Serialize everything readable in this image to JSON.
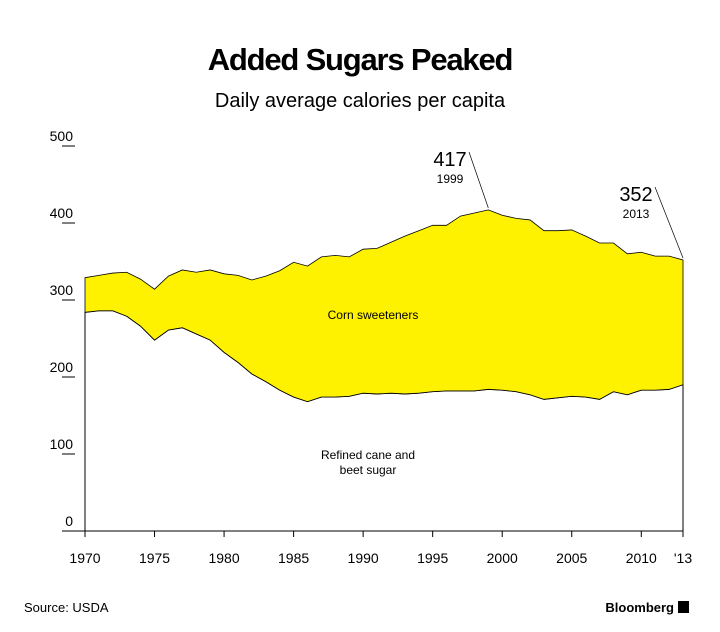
{
  "chart_data": {
    "type": "stacked-area",
    "title": "Added Sugars Peaked",
    "subtitle": "Daily average calories per capita",
    "x": [
      1970,
      1971,
      1972,
      1973,
      1974,
      1975,
      1976,
      1977,
      1978,
      1979,
      1980,
      1981,
      1982,
      1983,
      1984,
      1985,
      1986,
      1987,
      1988,
      1989,
      1990,
      1991,
      1992,
      1993,
      1994,
      1995,
      1996,
      1997,
      1998,
      1999,
      2000,
      2001,
      2002,
      2003,
      2004,
      2005,
      2006,
      2007,
      2008,
      2009,
      2010,
      2011,
      2012,
      2013
    ],
    "series": [
      {
        "name": "Refined cane and beet sugar",
        "color": "#ffffff",
        "values": [
          284,
          286,
          286,
          279,
          266,
          248,
          261,
          264,
          256,
          248,
          232,
          219,
          204,
          194,
          183,
          174,
          168,
          174,
          174,
          175,
          179,
          178,
          179,
          178,
          179,
          181,
          182,
          182,
          182,
          184,
          183,
          181,
          177,
          171,
          173,
          175,
          174,
          171,
          181,
          177,
          183,
          183,
          184,
          190
        ]
      },
      {
        "name": "Corn sweeteners",
        "color": "#fff200",
        "values": [
          45,
          46,
          49,
          57,
          61,
          66,
          70,
          75,
          80,
          91,
          102,
          113,
          122,
          137,
          155,
          175,
          176,
          182,
          184,
          181,
          187,
          189,
          196,
          205,
          211,
          216,
          215,
          227,
          231,
          233,
          227,
          225,
          227,
          219,
          217,
          216,
          209,
          203,
          193,
          183,
          179,
          174,
          173,
          162
        ]
      }
    ],
    "xlim": [
      1970,
      2013
    ],
    "xticks": [
      1970,
      1975,
      1980,
      1985,
      1990,
      1995,
      2000,
      2005,
      2010,
      {
        "value": 2013,
        "label": "'13"
      }
    ],
    "ylim": [
      0,
      500
    ],
    "yticks": [
      0,
      100,
      200,
      300,
      400,
      500
    ],
    "annotations": [
      {
        "value": "417",
        "year": "1999"
      },
      {
        "value": "352",
        "year": "2013"
      }
    ],
    "source": "Source: USDA",
    "brand": "Bloomberg"
  }
}
